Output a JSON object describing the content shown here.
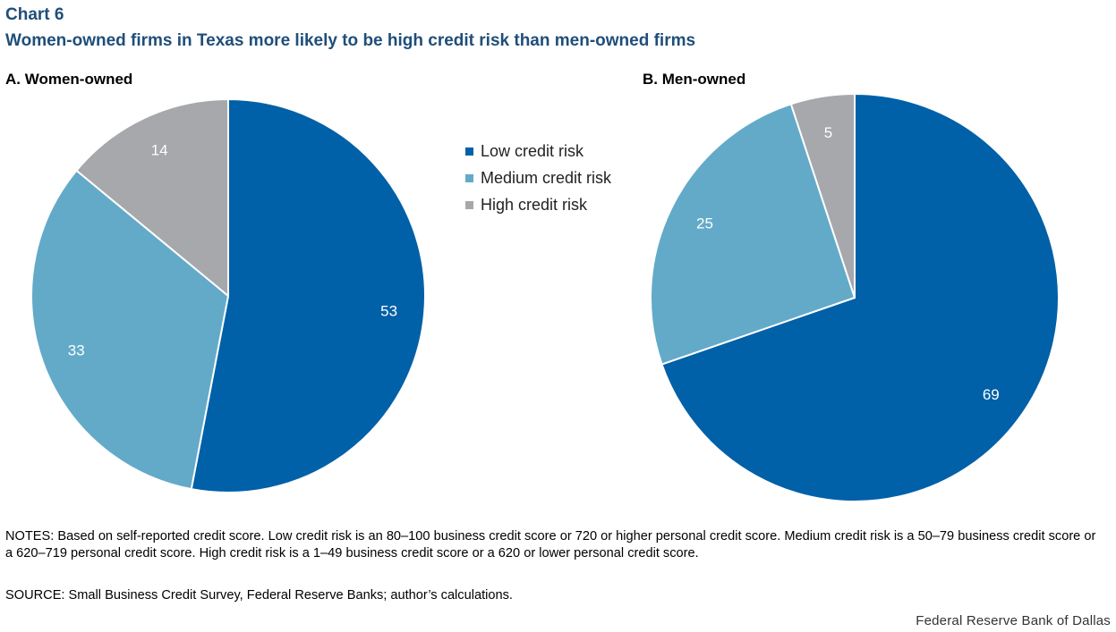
{
  "header": {
    "label": "Chart 6",
    "title": "Women-owned firms in Texas more likely to be high credit risk than men-owned firms"
  },
  "legend": [
    {
      "name": "Low credit risk",
      "color": "#0060a8"
    },
    {
      "name": "Medium credit risk",
      "color": "#63aac9"
    },
    {
      "name": "High credit risk",
      "color": "#a6a8ab"
    }
  ],
  "chart_data": [
    {
      "type": "pie",
      "title": "A. Women-owned",
      "categories": [
        "Low credit risk",
        "Medium credit risk",
        "High credit risk"
      ],
      "values": [
        53,
        33,
        14
      ],
      "colors": [
        "#0060a8",
        "#63aac9",
        "#a6a8ab"
      ],
      "data_labels": [
        "53",
        "33",
        "14"
      ],
      "legend_placement": "center"
    },
    {
      "type": "pie",
      "title": "B. Men-owned",
      "categories": [
        "Low credit risk",
        "Medium credit risk",
        "High credit risk"
      ],
      "values": [
        69,
        25,
        5
      ],
      "colors": [
        "#0060a8",
        "#63aac9",
        "#a6a8ab"
      ],
      "data_labels": [
        "69",
        "25",
        "5"
      ],
      "legend_placement": "center"
    }
  ],
  "footer": {
    "notes": "NOTES:  Based on self-reported credit score. Low credit risk is an 80–100 business credit score or 720 or higher personal credit score. Medium credit risk is a 50–79 business credit score or a 620–719 personal credit score. High credit risk is a 1–49 business credit score or a 620 or lower personal credit score.",
    "source": "SOURCE: Small Business Credit Survey, Federal Reserve Banks; author’s calculations.",
    "credit": "Federal Reserve Bank of Dallas"
  }
}
